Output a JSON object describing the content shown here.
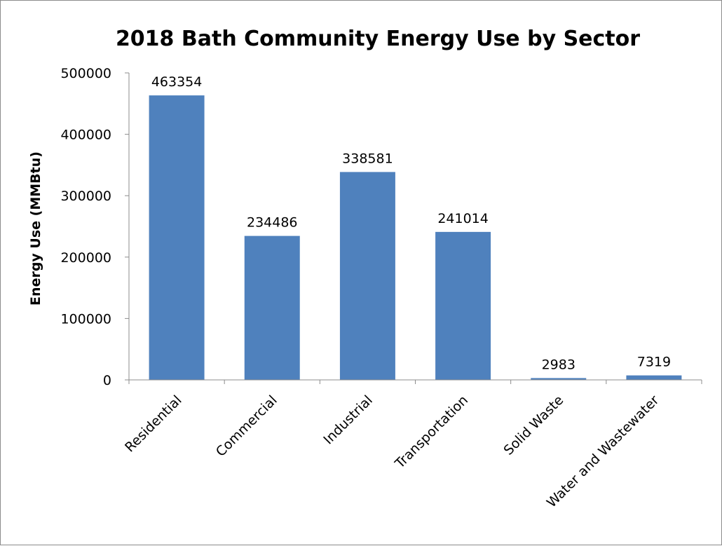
{
  "chart_data": {
    "type": "bar",
    "title": "2018 Bath Community Energy Use by Sector",
    "xlabel": "",
    "ylabel": "Energy Use (MMBtu)",
    "ylim": [
      0,
      500000
    ],
    "yticks": [
      "0",
      "100000",
      "200000",
      "300000",
      "400000",
      "500000"
    ],
    "categories": [
      "Residential",
      "Commercial",
      "Industrial",
      "Transportation",
      "Solid Waste",
      "Water and Wastewater"
    ],
    "values": [
      463354,
      234486,
      338581,
      241014,
      2983,
      7319
    ],
    "data_labels": [
      "463354",
      "234486",
      "338581",
      "241014",
      "2983",
      "7319"
    ],
    "grid": false,
    "legend": "none",
    "colors": {
      "bar": "#4f81bd",
      "axis": "#8c8c8c"
    }
  }
}
